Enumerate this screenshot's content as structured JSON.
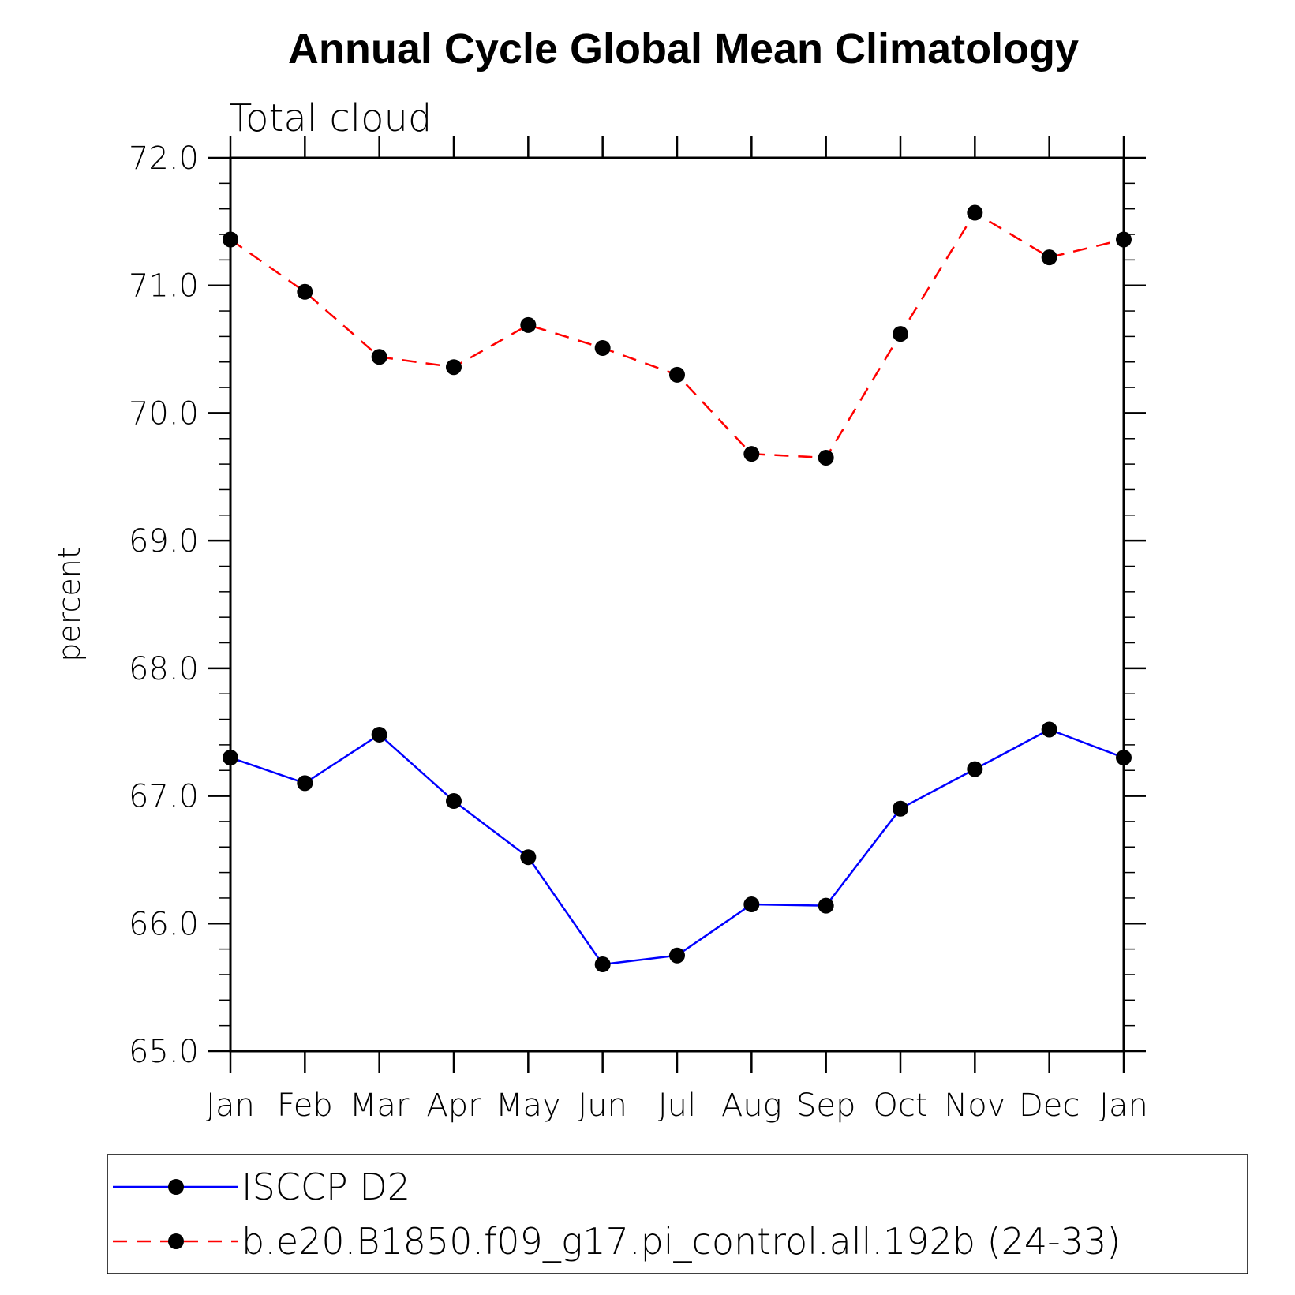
{
  "chart_data": {
    "type": "line",
    "title": "Annual Cycle Global Mean Climatology",
    "subtitle": "Total cloud",
    "xlabel": "",
    "ylabel": "percent",
    "categories": [
      "Jan",
      "Feb",
      "Mar",
      "Apr",
      "May",
      "Jun",
      "Jul",
      "Aug",
      "Sep",
      "Oct",
      "Nov",
      "Dec",
      "Jan"
    ],
    "ylim": [
      65.0,
      72.0
    ],
    "yticks": [
      "65.0",
      "66.0",
      "67.0",
      "68.0",
      "69.0",
      "70.0",
      "71.0",
      "72.0"
    ],
    "grid": false,
    "legend_position": "bottom",
    "series": [
      {
        "name": "ISCCP D2",
        "color": "#0000ff",
        "line_style": "solid",
        "marker": "filled-circle",
        "values": [
          67.3,
          67.1,
          67.48,
          66.96,
          66.52,
          65.68,
          65.75,
          66.15,
          66.14,
          66.9,
          67.21,
          67.52,
          67.3
        ]
      },
      {
        "name": "b.e20.B1850.f09_g17.pi_control.all.192b (24-33)",
        "color": "#ff0000",
        "line_style": "dashed",
        "marker": "filled-circle",
        "values": [
          71.36,
          70.95,
          70.44,
          70.36,
          70.69,
          70.51,
          70.3,
          69.68,
          69.65,
          70.62,
          71.57,
          71.22,
          71.36
        ]
      }
    ]
  }
}
